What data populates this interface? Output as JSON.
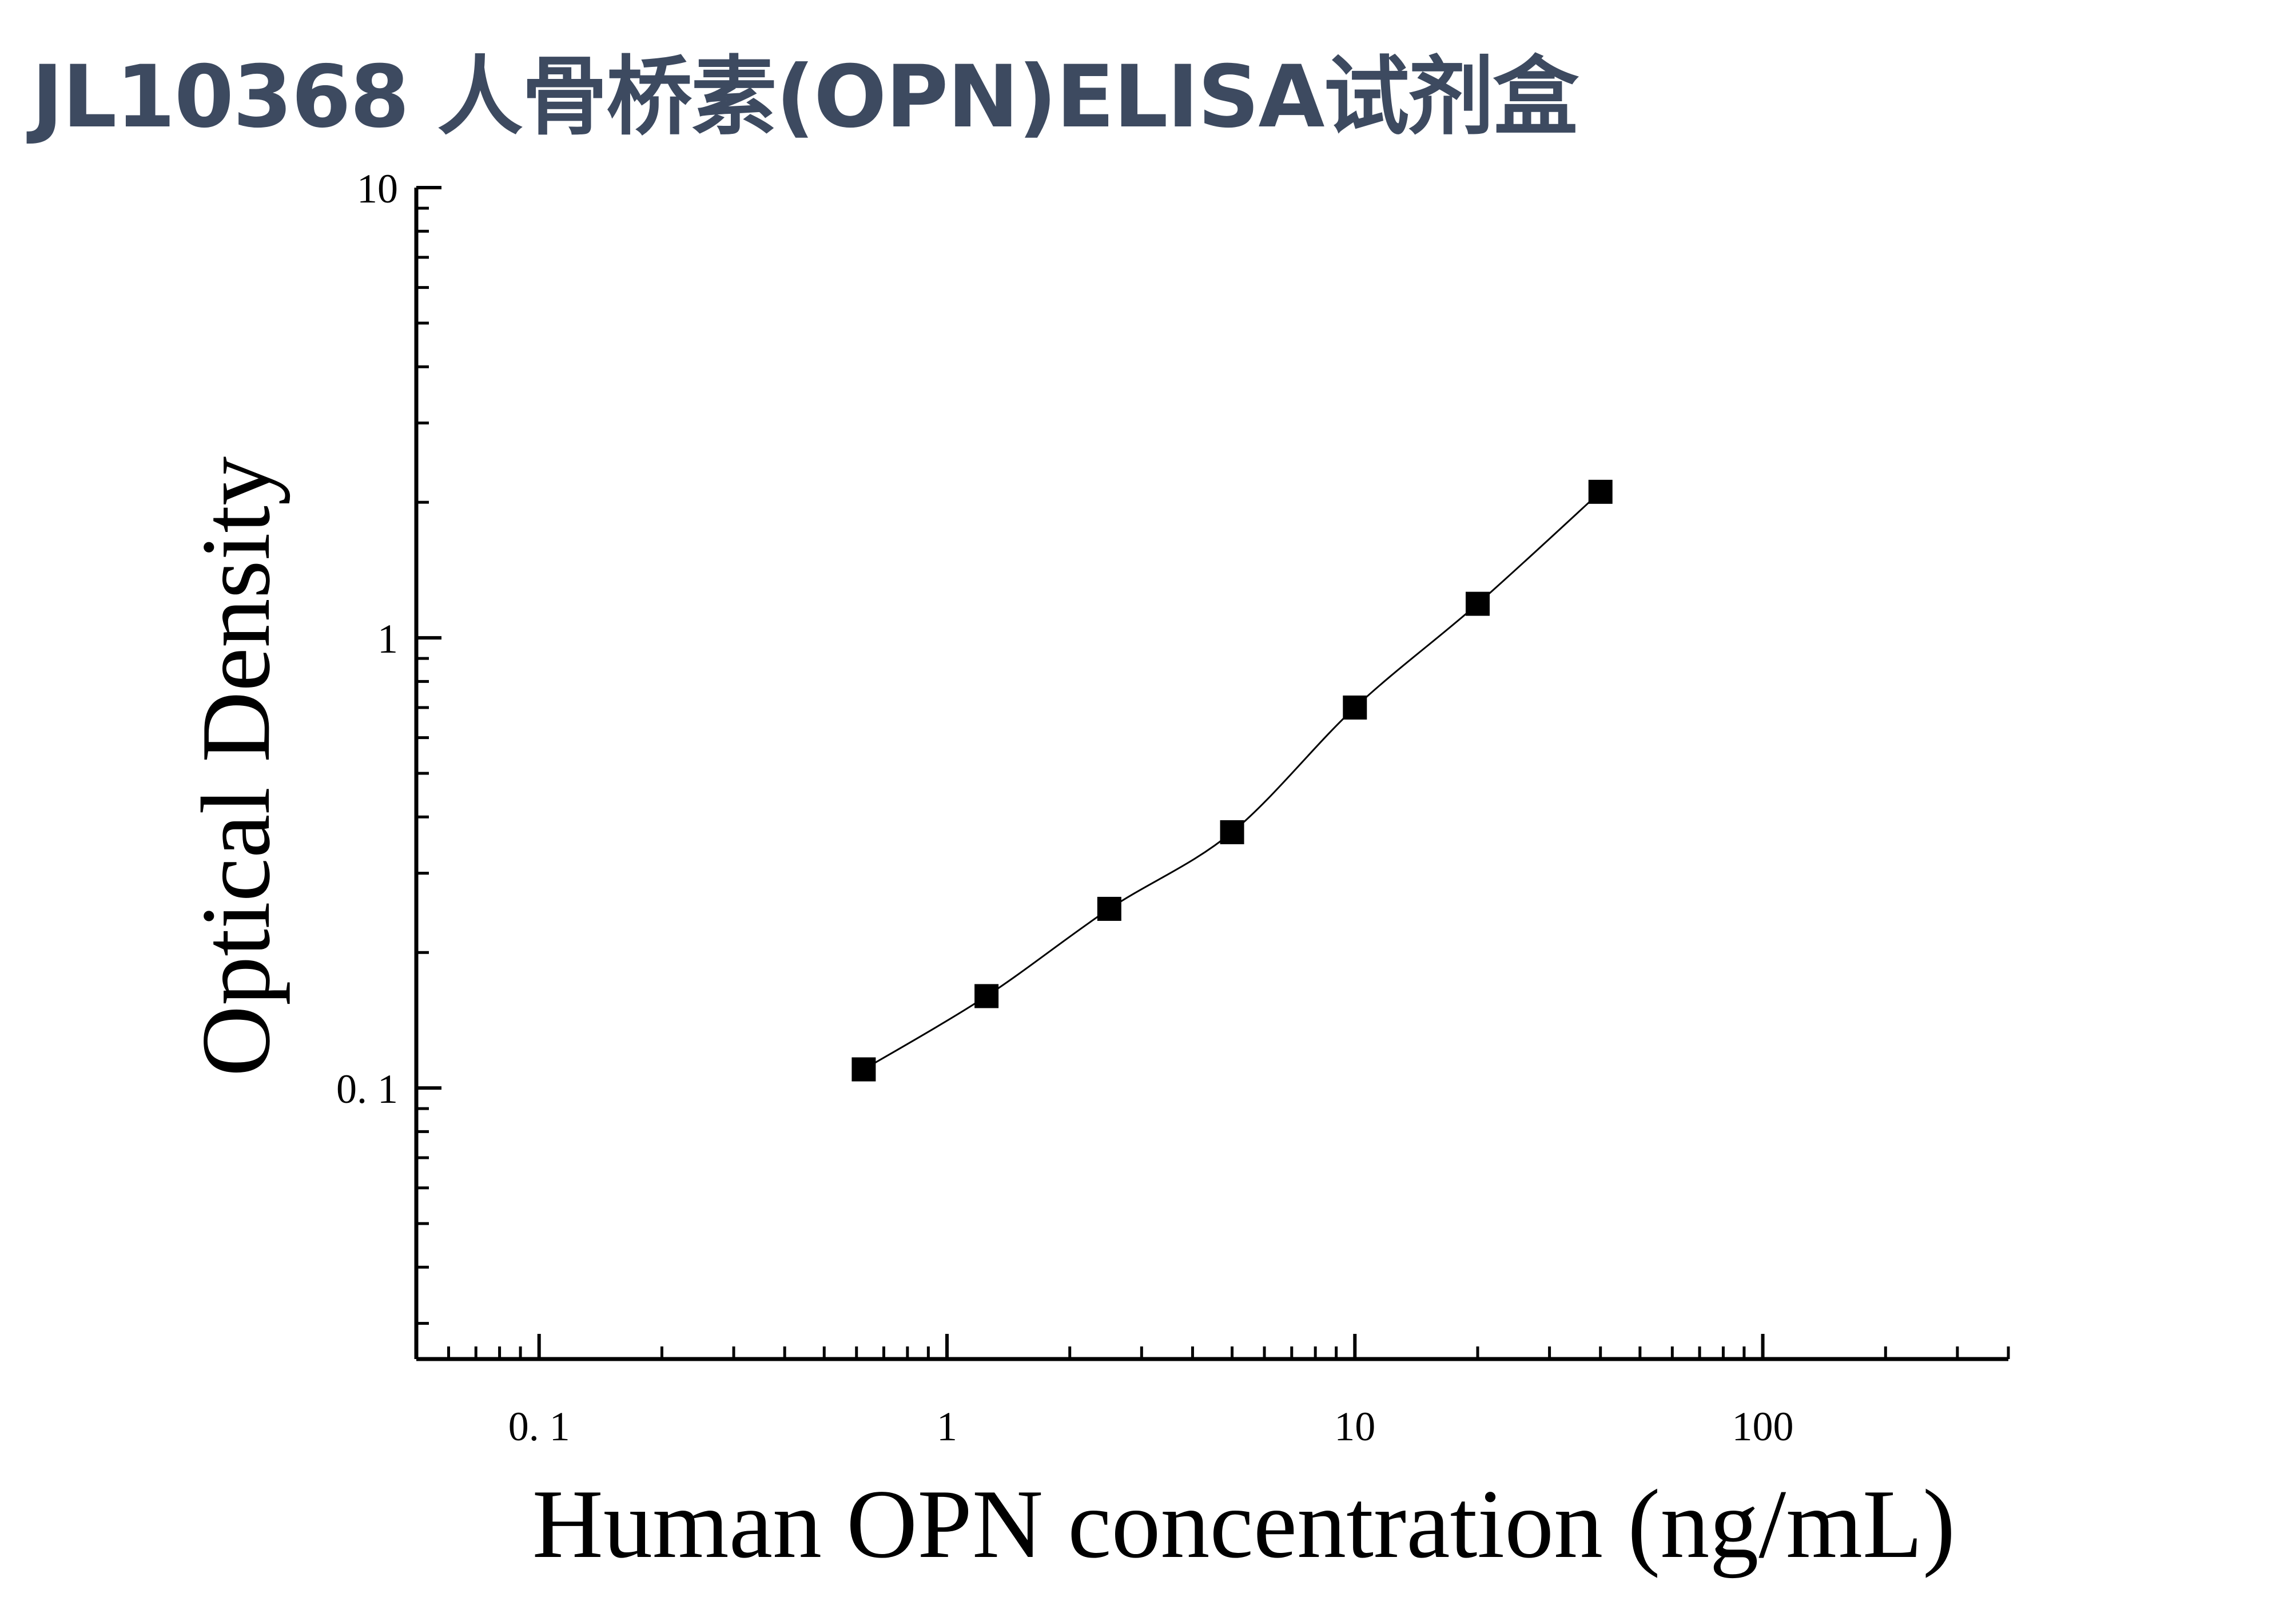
{
  "title": "JL10368 人骨桥素(OPN)ELISA试剂盒",
  "chart_data": {
    "type": "scatter",
    "xlabel": "Human OPN concentration (ng/mL)",
    "ylabel": "Optical Density",
    "x_scale": "log",
    "y_scale": "log",
    "xlim": [
      0.05,
      400
    ],
    "ylim": [
      0.025,
      10
    ],
    "x_ticks": [
      {
        "value": 0.1,
        "label": "0. 1"
      },
      {
        "value": 1,
        "label": "1"
      },
      {
        "value": 10,
        "label": "10"
      },
      {
        "value": 100,
        "label": "100"
      }
    ],
    "y_ticks": [
      {
        "value": 0.1,
        "label": "0. 1"
      },
      {
        "value": 1,
        "label": "1"
      },
      {
        "value": 10,
        "label": "10"
      }
    ],
    "grid": false,
    "marker": "square",
    "marker_color": "#000000",
    "line_color": "#000000",
    "fit_curve": true,
    "x": [
      0.625,
      1.25,
      2.5,
      5,
      10,
      20,
      40
    ],
    "y": [
      0.11,
      0.16,
      0.25,
      0.37,
      0.7,
      1.19,
      2.11
    ]
  }
}
